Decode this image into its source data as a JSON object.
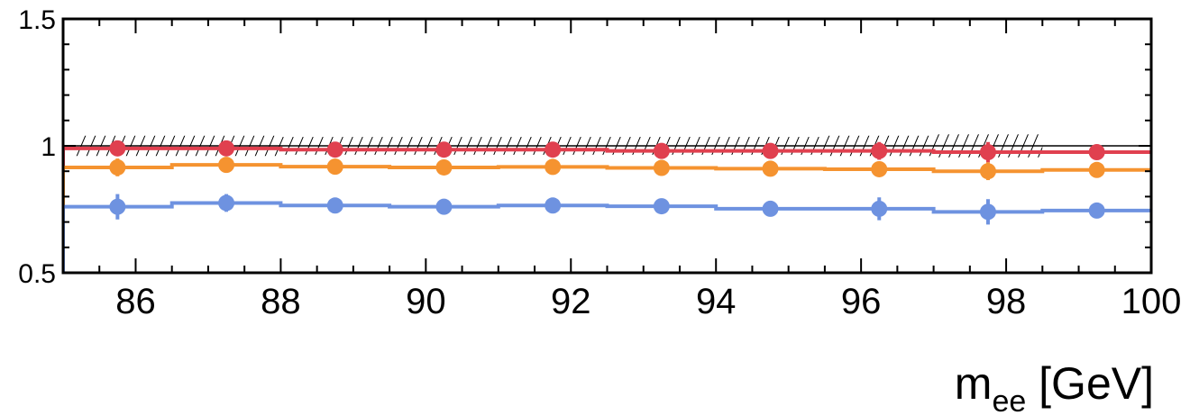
{
  "chart_data": {
    "type": "scatter",
    "title": "",
    "xlabel_main": "m",
    "xlabel_sub": "ee",
    "xlabel_unit": " [GeV]",
    "ylabel": "",
    "xlim": [
      85,
      100
    ],
    "ylim": [
      0.5,
      1.5
    ],
    "xticks": [
      86,
      88,
      90,
      92,
      94,
      96,
      98,
      100
    ],
    "yticks": [
      0.5,
      1,
      1.5
    ],
    "ytick_labels": [
      "0.5",
      "1",
      "1.5"
    ],
    "bin_edges": [
      85,
      86.5,
      88,
      89.5,
      91,
      92.5,
      94,
      95.5,
      97,
      98.5,
      100
    ],
    "x": [
      85.75,
      87.25,
      88.75,
      90.25,
      91.75,
      93.25,
      94.75,
      96.25,
      97.75,
      99.25
    ],
    "reference_line": 1.0,
    "band": {
      "description": "hatched",
      "x_range": [
        85,
        98.5
      ],
      "lower": [
        0.96,
        0.96,
        0.965,
        0.965,
        0.965,
        0.965,
        0.965,
        0.96,
        0.955
      ],
      "upper": [
        1.04,
        1.04,
        1.035,
        1.035,
        1.035,
        1.035,
        1.035,
        1.04,
        1.045
      ]
    },
    "series": [
      {
        "color": "#e0404f",
        "values": [
          0.99,
          0.99,
          0.985,
          0.985,
          0.985,
          0.98,
          0.98,
          0.98,
          0.975,
          0.975
        ],
        "errors": [
          0.03,
          0.03,
          0.015,
          0.015,
          0.015,
          0.015,
          0.025,
          0.035,
          0.04,
          0.015
        ]
      },
      {
        "color": "#f59330",
        "values": [
          0.915,
          0.925,
          0.918,
          0.915,
          0.917,
          0.913,
          0.91,
          0.908,
          0.9,
          0.905
        ],
        "errors": [
          0.035,
          0.025,
          0.015,
          0.015,
          0.015,
          0.015,
          0.025,
          0.03,
          0.035,
          0.015
        ]
      },
      {
        "color": "#6e92e0",
        "values": [
          0.76,
          0.775,
          0.765,
          0.76,
          0.765,
          0.762,
          0.752,
          0.752,
          0.74,
          0.745
        ],
        "errors": [
          0.05,
          0.035,
          0.015,
          0.015,
          0.015,
          0.015,
          0.025,
          0.045,
          0.05,
          0.015
        ]
      }
    ]
  }
}
